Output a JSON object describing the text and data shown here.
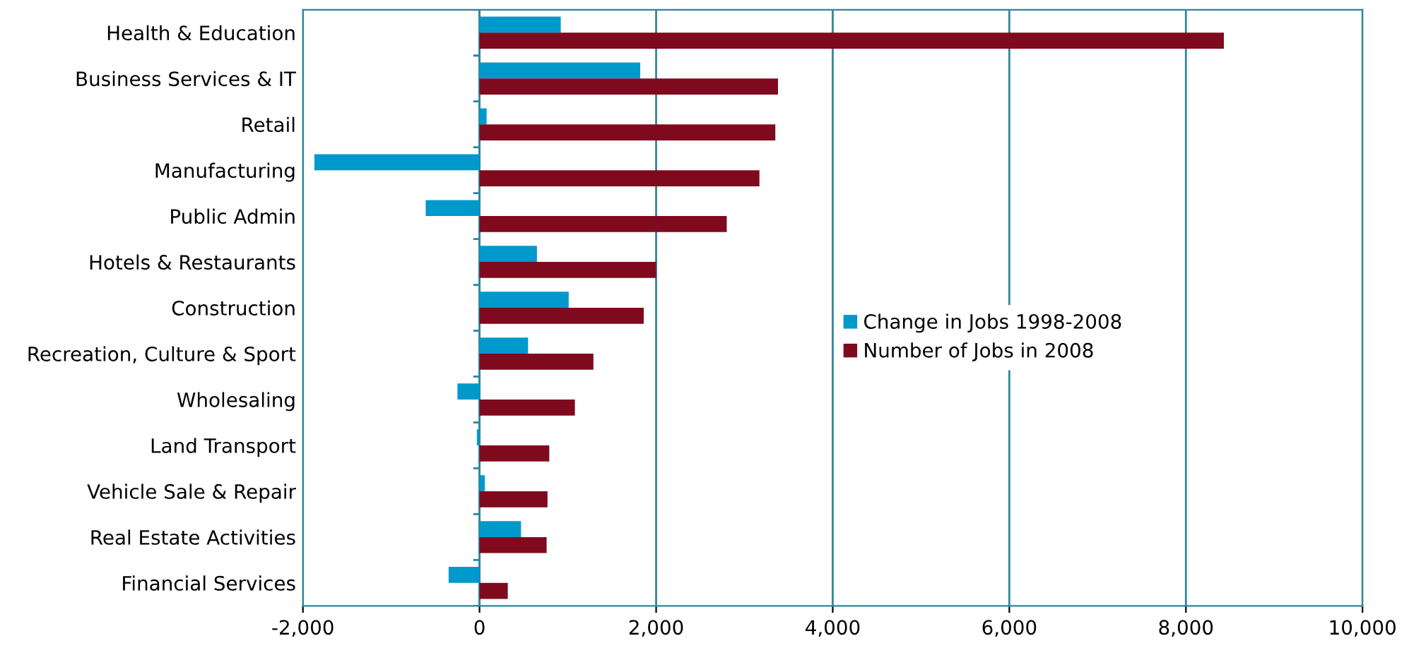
{
  "chart_data": {
    "type": "bar",
    "orientation": "horizontal",
    "categories": [
      "Health & Education",
      "Business Services & IT",
      "Retail",
      "Manufacturing",
      "Public Admin",
      "Hotels & Restaurants",
      "Construction",
      "Recreation, Culture & Sport",
      "Wholesaling",
      "Land Transport",
      "Vehicle Sale & Repair",
      "Real Estate Activities",
      "Financial Services"
    ],
    "series": [
      {
        "name": "Change in Jobs 1998-2008",
        "color": "#0099cc",
        "values": [
          920,
          1820,
          80,
          -1870,
          -610,
          650,
          1010,
          550,
          -250,
          -30,
          60,
          470,
          -350
        ]
      },
      {
        "name": "Number of Jobs in 2008",
        "color": "#7f0a1e",
        "values": [
          8430,
          3380,
          3350,
          3170,
          2800,
          2000,
          1860,
          1290,
          1080,
          790,
          770,
          760,
          320
        ]
      }
    ],
    "xlim": [
      -2000,
      10000
    ],
    "xticks": [
      {
        "value": -2000,
        "label": "-2,000"
      },
      0,
      {
        "value": 2000,
        "label": "2,000"
      },
      {
        "value": 4000,
        "label": "4,000"
      },
      {
        "value": 6000,
        "label": "6,000"
      },
      {
        "value": 8000,
        "label": "8,000"
      },
      {
        "value": 10000,
        "label": "10,000"
      }
    ],
    "grid": "x",
    "legend": "right"
  }
}
